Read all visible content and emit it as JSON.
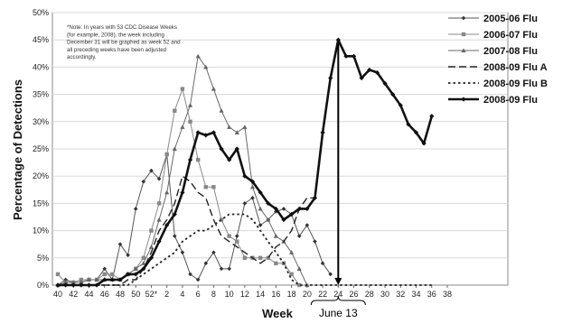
{
  "chart_data": {
    "type": "line",
    "xlabel": "Week",
    "ylabel": "Percentage of Detections",
    "ylim": [
      0,
      50
    ],
    "y_ticks": [
      "0%",
      "5%",
      "10%",
      "15%",
      "20%",
      "25%",
      "30%",
      "35%",
      "40%",
      "45%",
      "50%"
    ],
    "x_tick_labels": [
      "40",
      "42",
      "44",
      "46",
      "48",
      "50",
      "52*",
      "2",
      "4",
      "6",
      "8",
      "10",
      "12",
      "14",
      "16",
      "18",
      "20",
      "22",
      "24",
      "26",
      "28",
      "30",
      "32",
      "34",
      "36",
      "38"
    ],
    "note_lines": [
      "*Note: In years with 53 CDC Disease Weeks",
      "(for example, 2008), the week including",
      "December 31 will be graphed as week 52 and",
      "all preceding weeks have been adjusted",
      "accordingly."
    ],
    "annotation": {
      "label": "June 13",
      "week_index": 36,
      "value": 45
    },
    "legend_position": "top-right",
    "series": [
      {
        "name": "2005-06 Flu",
        "style": "thin-diamond",
        "values": [
          0,
          1,
          0.5,
          0.5,
          1,
          1,
          3,
          1,
          7.5,
          5.5,
          14,
          19,
          21,
          19.5,
          24,
          9,
          6,
          2,
          1,
          4,
          6,
          3,
          3,
          9,
          15,
          16,
          11,
          12,
          13.5,
          14,
          13,
          9,
          11,
          8,
          4,
          2
        ]
      },
      {
        "name": "2006-07 Flu",
        "style": "thin-square",
        "values": [
          2,
          0.5,
          0.5,
          1,
          1,
          1,
          2,
          2,
          1,
          2,
          3,
          5,
          10,
          15,
          24,
          32,
          36,
          30,
          23,
          18,
          18,
          12,
          9,
          8,
          5,
          5,
          5,
          5,
          4,
          4,
          2,
          0
        ]
      },
      {
        "name": "2007-08 Flu",
        "style": "thin-triangle",
        "values": [
          0,
          0.5,
          0.5,
          0.5,
          1,
          1,
          1,
          1,
          1,
          2,
          3,
          4,
          7,
          12,
          17,
          25,
          29,
          33,
          42,
          40,
          36,
          32,
          29,
          28,
          29,
          18,
          14,
          12,
          9,
          8,
          6,
          3,
          0
        ]
      },
      {
        "name": "2008-09 Flu A",
        "style": "dash",
        "values": [
          0,
          0,
          0,
          0,
          0,
          0,
          0,
          0,
          0,
          1,
          1,
          3,
          6,
          10,
          12,
          15,
          20,
          19,
          17,
          16,
          12,
          9,
          8,
          7,
          6,
          5,
          4,
          5,
          7,
          8,
          10,
          14,
          16,
          16,
          28,
          38,
          45,
          42,
          42,
          38,
          39.5,
          39,
          37,
          35,
          33,
          29.5,
          28,
          26,
          31
        ]
      },
      {
        "name": "2008-09 Flu B",
        "style": "dot",
        "values": [
          0,
          0,
          0,
          0,
          0,
          0,
          0,
          0,
          0,
          0,
          1,
          2,
          3,
          4,
          5,
          6,
          8,
          9,
          10,
          10,
          11,
          12,
          13,
          13,
          13,
          12,
          10,
          8,
          6,
          4,
          1,
          0,
          0,
          0,
          0,
          0,
          0,
          0,
          0,
          0,
          0,
          0,
          0,
          0,
          0,
          0,
          0,
          0,
          0
        ]
      },
      {
        "name": "2008-09 Flu",
        "style": "bold-diamond",
        "values": [
          0,
          0,
          0,
          0,
          0,
          0,
          1,
          1,
          1,
          2,
          2,
          3,
          5,
          8,
          11,
          13,
          17,
          23,
          28,
          27.5,
          28,
          25,
          23,
          25,
          20,
          19,
          17,
          15,
          14,
          12,
          13,
          14,
          14,
          16,
          28,
          38,
          45,
          42,
          42,
          38,
          39.5,
          39,
          37,
          35,
          33,
          29.5,
          28,
          26,
          31
        ]
      }
    ]
  }
}
